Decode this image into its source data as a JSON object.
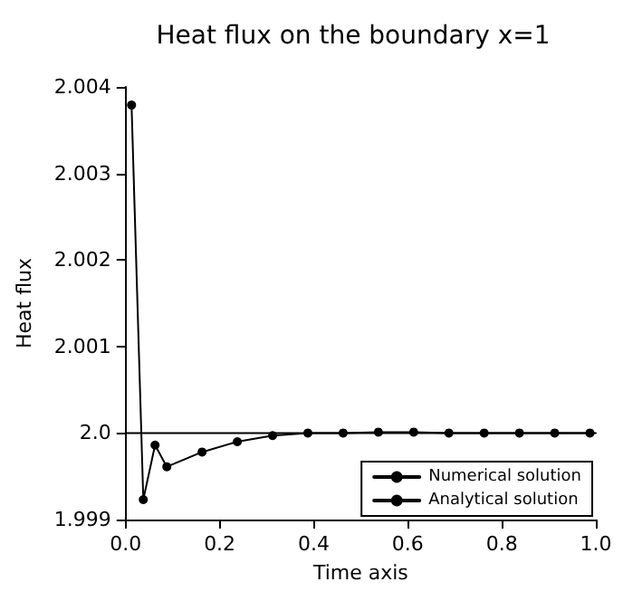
{
  "chart_data": {
    "type": "line",
    "title": "Heat flux on the boundary x=1",
    "xlabel": "Time axis",
    "ylabel": "Heat flux",
    "series": [
      {
        "name": "Numerical solution",
        "color": "#000000",
        "marker": "circle",
        "x": [
          0.0125,
          0.0375,
          0.0625,
          0.0875,
          0.1625,
          0.2375,
          0.3125,
          0.3875,
          0.4625,
          0.5375,
          0.6125,
          0.6875,
          0.7625,
          0.8375,
          0.9125,
          0.9875
        ],
        "values": [
          2.00379,
          1.99923,
          1.99986,
          1.99961,
          1.99978,
          1.9999,
          1.99997,
          2.0,
          2.0,
          2.00001,
          2.00001,
          2.0,
          2.0,
          2.0,
          2.0,
          2.0
        ]
      },
      {
        "name": "Analytical solution",
        "color": "#000000",
        "marker": "none",
        "x": [
          0,
          1
        ],
        "values": [
          2.0,
          2.0
        ]
      }
    ],
    "xlim": [
      0,
      1
    ],
    "xticks": [
      {
        "value": 0,
        "label": "0.0"
      },
      0.2,
      0.4,
      0.6,
      0.8,
      {
        "value": 1,
        "label": "1.0"
      }
    ],
    "ylim": [
      1.999,
      2.004
    ],
    "yticks": [
      1.999,
      {
        "value": 2,
        "label": "2.0"
      },
      2.001,
      2.002,
      2.003,
      2.004
    ],
    "grid": false,
    "legend": "bottom right",
    "line_style": "solid"
  }
}
